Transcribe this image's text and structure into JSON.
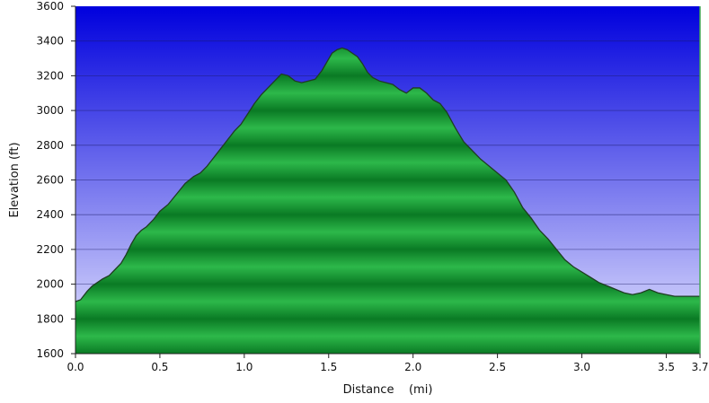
{
  "chart_data": {
    "type": "area",
    "title": "",
    "xlabel": "Distance    (mi)",
    "ylabel": "Elevation (ft)",
    "xlim": [
      0,
      3.7
    ],
    "ylim": [
      1600,
      3600
    ],
    "x_ticks": [
      {
        "value": 0.0,
        "label": "0.0"
      },
      {
        "value": 0.5,
        "label": "0.5"
      },
      {
        "value": 1.0,
        "label": "1.0"
      },
      {
        "value": 1.5,
        "label": "1.5"
      },
      {
        "value": 2.0,
        "label": "2.0"
      },
      {
        "value": 2.5,
        "label": "2.5"
      },
      {
        "value": 3.0,
        "label": "3.0"
      },
      {
        "value": 3.5,
        "label": "3.5"
      },
      {
        "value": 3.7,
        "label": "3.7"
      }
    ],
    "y_ticks": [
      {
        "value": 1600,
        "label": "1600"
      },
      {
        "value": 1800,
        "label": "1800"
      },
      {
        "value": 2000,
        "label": "2000"
      },
      {
        "value": 2200,
        "label": "2200"
      },
      {
        "value": 2400,
        "label": "2400"
      },
      {
        "value": 2600,
        "label": "2600"
      },
      {
        "value": 2800,
        "label": "2800"
      },
      {
        "value": 3000,
        "label": "3000"
      },
      {
        "value": 3200,
        "label": "3200"
      },
      {
        "value": 3400,
        "label": "3400"
      },
      {
        "value": 3600,
        "label": "3600"
      }
    ],
    "grid": "horizontal",
    "colors": {
      "background_top": "#0000dd",
      "background_bottom": "#e8e8ff",
      "fill_light": "#2db84a",
      "fill_dark": "#0a7a24",
      "line": "#1f3d22",
      "grid": "#1a1a66"
    },
    "series": [
      {
        "x": [
          0.0,
          0.03,
          0.07,
          0.1,
          0.13,
          0.16,
          0.2,
          0.23,
          0.27,
          0.3,
          0.33,
          0.36,
          0.39,
          0.42,
          0.46,
          0.5,
          0.55,
          0.6,
          0.65,
          0.7,
          0.74,
          0.78,
          0.82,
          0.86,
          0.9,
          0.94,
          0.98,
          1.02,
          1.06,
          1.1,
          1.14,
          1.18,
          1.22,
          1.26,
          1.3,
          1.34,
          1.38,
          1.42,
          1.46,
          1.49,
          1.52,
          1.55,
          1.58,
          1.61,
          1.64,
          1.67,
          1.7,
          1.73,
          1.76,
          1.8,
          1.84,
          1.88,
          1.92,
          1.96,
          2.0,
          2.04,
          2.08,
          2.12,
          2.16,
          2.2,
          2.25,
          2.3,
          2.35,
          2.4,
          2.45,
          2.5,
          2.55,
          2.6,
          2.65,
          2.7,
          2.75,
          2.8,
          2.85,
          2.9,
          2.95,
          3.0,
          3.05,
          3.1,
          3.15,
          3.2,
          3.25,
          3.3,
          3.35,
          3.4,
          3.45,
          3.5,
          3.55,
          3.6,
          3.65,
          3.7
        ],
        "y": [
          1900,
          1910,
          1960,
          1990,
          2010,
          2030,
          2050,
          2080,
          2120,
          2170,
          2230,
          2280,
          2310,
          2330,
          2370,
          2420,
          2460,
          2520,
          2580,
          2620,
          2640,
          2680,
          2730,
          2780,
          2830,
          2880,
          2920,
          2980,
          3040,
          3090,
          3130,
          3170,
          3210,
          3200,
          3170,
          3160,
          3170,
          3180,
          3230,
          3280,
          3330,
          3350,
          3360,
          3350,
          3330,
          3310,
          3270,
          3220,
          3190,
          3170,
          3160,
          3150,
          3120,
          3100,
          3130,
          3130,
          3100,
          3060,
          3040,
          2990,
          2900,
          2820,
          2770,
          2720,
          2680,
          2640,
          2600,
          2530,
          2440,
          2380,
          2310,
          2260,
          2200,
          2140,
          2100,
          2070,
          2040,
          2010,
          1990,
          1970,
          1950,
          1940,
          1950,
          1970,
          1950,
          1940,
          1930,
          1930,
          1930,
          1930
        ]
      }
    ]
  }
}
